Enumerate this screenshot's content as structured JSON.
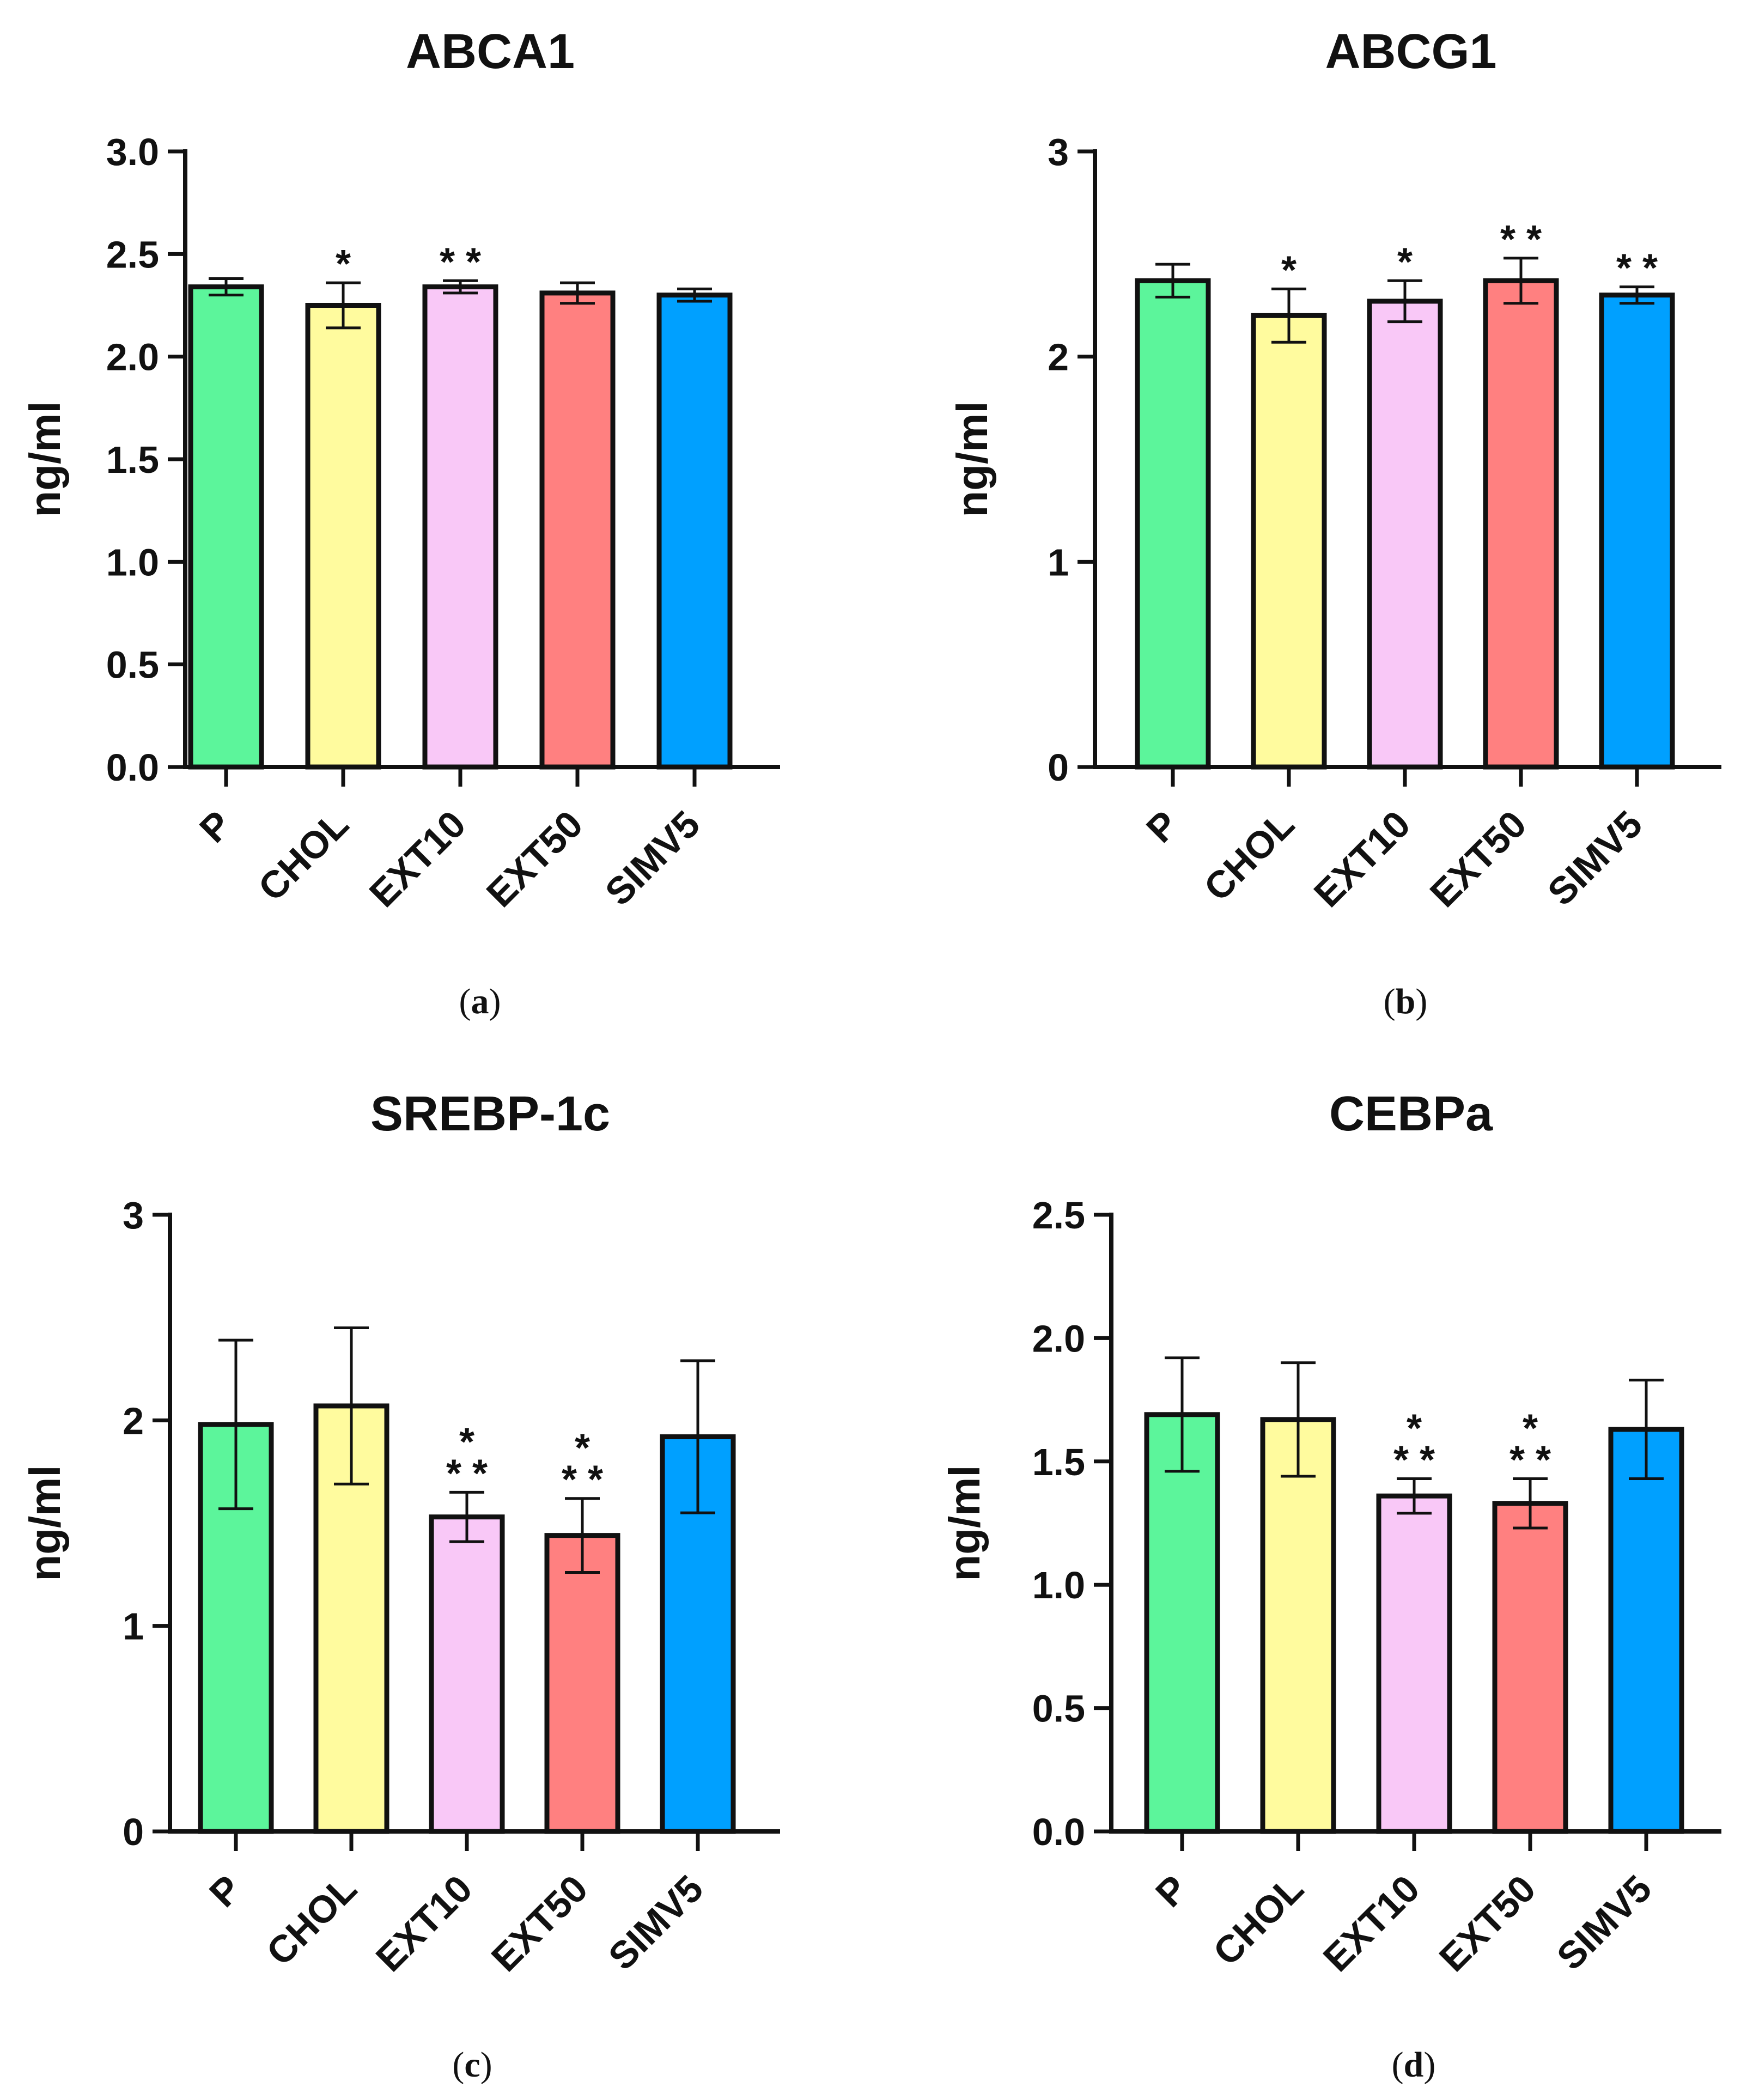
{
  "chart_data": [
    {
      "type": "bar",
      "panel_label": "a",
      "title": "ABCA1",
      "ylabel": "ng/ml",
      "xlabel": "",
      "categories": [
        "P",
        "CHOL",
        "EXT10",
        "EXT50",
        "SIMV5"
      ],
      "values": [
        2.34,
        2.25,
        2.34,
        2.31,
        2.3
      ],
      "errors": [
        0.04,
        0.11,
        0.03,
        0.05,
        0.03
      ],
      "significance": [
        "",
        "*",
        "**",
        "",
        ""
      ],
      "ylim": [
        0,
        3.0
      ],
      "yticks": [
        "0.0",
        "0.5",
        "1.0",
        "1.5",
        "2.0",
        "2.5",
        "3.0"
      ],
      "colors": [
        "#5CF59B",
        "#FFFB9E",
        "#F9C8F7",
        "#FF8080",
        "#00A0FF"
      ],
      "grid": false
    },
    {
      "type": "bar",
      "panel_label": "b",
      "title": "ABCG1",
      "ylabel": "ng/ml",
      "xlabel": "",
      "categories": [
        "P",
        "CHOL",
        "EXT10",
        "EXT50",
        "SIMV5"
      ],
      "values": [
        2.37,
        2.2,
        2.27,
        2.37,
        2.3
      ],
      "errors": [
        0.08,
        0.13,
        0.1,
        0.11,
        0.04
      ],
      "significance": [
        "",
        "*",
        "*",
        "**",
        "**"
      ],
      "ylim": [
        0,
        3
      ],
      "yticks": [
        "0",
        "1",
        "2",
        "3"
      ],
      "colors": [
        "#5CF59B",
        "#FFFB9E",
        "#F9C8F7",
        "#FF8080",
        "#00A0FF"
      ],
      "grid": false
    },
    {
      "type": "bar",
      "panel_label": "c",
      "title": "SREBP-1c",
      "ylabel": "ng/ml",
      "xlabel": "",
      "categories": [
        "P",
        "CHOL",
        "EXT10",
        "EXT50",
        "SIMV5"
      ],
      "values": [
        1.98,
        2.07,
        1.53,
        1.44,
        1.92
      ],
      "errors": [
        0.41,
        0.38,
        0.12,
        0.18,
        0.37
      ],
      "significance": [
        "",
        "",
        "* / **",
        "* / **",
        ""
      ],
      "ylim": [
        0,
        3
      ],
      "yticks": [
        "0",
        "1",
        "2",
        "3"
      ],
      "colors": [
        "#5CF59B",
        "#FFFB9E",
        "#F9C8F7",
        "#FF8080",
        "#00A0FF"
      ],
      "grid": false
    },
    {
      "type": "bar",
      "panel_label": "d",
      "title": "CEBPa",
      "ylabel": "ng/ml",
      "xlabel": "",
      "categories": [
        "P",
        "CHOL",
        "EXT10",
        "EXT50",
        "SIMV5"
      ],
      "values": [
        1.69,
        1.67,
        1.36,
        1.33,
        1.63
      ],
      "errors": [
        0.23,
        0.23,
        0.07,
        0.1,
        0.2
      ],
      "significance": [
        "",
        "",
        "* / **",
        "* / **",
        ""
      ],
      "ylim": [
        0,
        2.5
      ],
      "yticks": [
        "0.0",
        "0.5",
        "1.0",
        "1.5",
        "2.0",
        "2.5"
      ],
      "colors": [
        "#5CF59B",
        "#FFFB9E",
        "#F9C8F7",
        "#FF8080",
        "#00A0FF"
      ],
      "grid": false
    }
  ]
}
